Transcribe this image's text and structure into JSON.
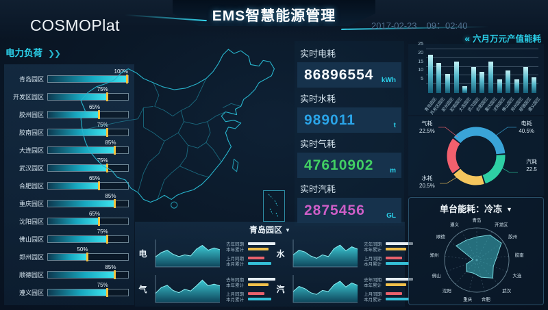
{
  "header": {
    "logo": "COSMOPlat",
    "title": "EMS智慧能源管理",
    "date": "2017-02-23",
    "time": "09：02:40",
    "energy_link": "六月万元产值能耗",
    "energy_link_icon": "«"
  },
  "left_panel": {
    "title": "电力负荷",
    "arrow_icon": "❯❯"
  },
  "stats": {
    "items": [
      {
        "label": "实时电耗",
        "value": "86896554",
        "unit": "kWh",
        "color": "#f4f8fb"
      },
      {
        "label": "实时水耗",
        "value": "989011",
        "unit": "t",
        "color": "#2aa4e8"
      },
      {
        "label": "实时气耗",
        "value": "47610902",
        "unit": "m",
        "color": "#41cf63"
      },
      {
        "label": "实时汽耗",
        "value": "2875456",
        "unit": "GL",
        "color": "#cc5ec6"
      }
    ]
  },
  "bottom_panel": {
    "title": "青岛园区",
    "dropdown_icon": "▼"
  },
  "right_panel": {
    "radar_title": "单台能耗：冷冻",
    "dropdown_icon": "▼"
  },
  "chart_data": [
    {
      "name": "load_bars",
      "type": "bar",
      "orientation": "horizontal",
      "title": "电力负荷",
      "categories": [
        "青岛园区",
        "开发区园区",
        "胶州园区",
        "胶南园区",
        "大连园区",
        "武汉园区",
        "合肥园区",
        "重庆园区",
        "沈阳园区",
        "佛山园区",
        "郑州园区",
        "顺德园区",
        "遵义园区"
      ],
      "values": [
        100,
        75,
        65,
        75,
        85,
        75,
        65,
        85,
        65,
        75,
        50,
        85,
        75
      ],
      "unit": "%",
      "xlim": [
        0,
        100
      ],
      "bar_color": "#3fe6f0",
      "marker_color": "#f2c23e"
    },
    {
      "name": "monthly_energy_bars",
      "type": "bar",
      "title": "六月万元产值能耗",
      "categories": [
        "青岛园区",
        "开发区园区",
        "胶州园区",
        "胶南园区",
        "大连园区",
        "武汉园区",
        "合肥园区",
        "重庆园区",
        "沈阳园区",
        "佛山园区",
        "郑州园区",
        "顺德园区",
        "遵义园区"
      ],
      "values": [
        22,
        17,
        11,
        18,
        4,
        15,
        12,
        18,
        8,
        13,
        8,
        15,
        9
      ],
      "ylim": [
        0,
        25
      ],
      "yticks": [
        5,
        10,
        15,
        20,
        25
      ],
      "bar_color": "#7fd8e8",
      "grid": true
    },
    {
      "name": "energy_share_donut",
      "type": "pie",
      "slices": [
        {
          "label": "电耗",
          "value": 40.5,
          "value_text": "40.5%",
          "color": "#3aa4d8"
        },
        {
          "label": "汽耗",
          "value": 22.5,
          "value_text": "22.5",
          "color": "#2ecfa4"
        },
        {
          "label": "水耗",
          "value": 20.5,
          "value_text": "20.5%",
          "color": "#f5c65d"
        },
        {
          "label": "气耗",
          "value": 22.5,
          "value_text": "22.5%",
          "color": "#f2606e"
        }
      ]
    },
    {
      "name": "single_unit_energy_radar",
      "type": "radar",
      "title": "单台能耗：冷冻",
      "categories": [
        "青岛",
        "开发区",
        "胶州",
        "胶南",
        "大连",
        "武汉",
        "合肥",
        "重庆",
        "沈阳",
        "佛山",
        "郑州",
        "顺德",
        "遵义"
      ],
      "values": [
        72,
        88,
        93,
        62,
        55,
        75,
        55,
        42,
        48,
        35,
        12,
        78,
        70
      ],
      "max": 100,
      "fill_color": "rgba(64,196,205,0.5)",
      "line_color": "rgba(130,230,235,0.9)"
    },
    {
      "name": "qingdao_trends",
      "type": "area",
      "title": "青岛园区",
      "legend": [
        "去年同期",
        "本年累计",
        "上月同期",
        "本月累计"
      ],
      "legend_colors": [
        "#e6eef5",
        "#f0c04a",
        "#e8616c",
        "#35c0d8"
      ],
      "legend_widths": [
        40,
        30,
        24,
        34
      ],
      "charts": [
        {
          "label": "电",
          "values": [
            35,
            50,
            58,
            44,
            36,
            42,
            38,
            62,
            75,
            58,
            66,
            60
          ]
        },
        {
          "label": "水",
          "values": [
            42,
            58,
            52,
            38,
            30,
            42,
            36,
            64,
            76,
            56,
            70,
            62
          ]
        },
        {
          "label": "气",
          "values": [
            32,
            52,
            60,
            42,
            34,
            46,
            40,
            58,
            78,
            58,
            64,
            58
          ]
        },
        {
          "label": "汽",
          "values": [
            38,
            56,
            48,
            34,
            28,
            42,
            38,
            62,
            74,
            54,
            68,
            60
          ]
        }
      ]
    }
  ]
}
